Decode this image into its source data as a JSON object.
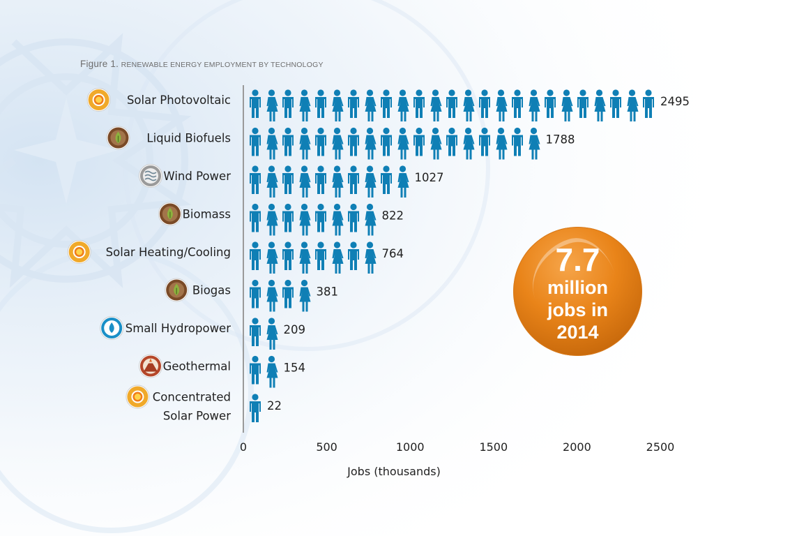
{
  "figure": {
    "caption_prefix": "Figure 1.",
    "caption_text": "Renewable energy employment by technology"
  },
  "badge": {
    "number": "7.7",
    "line1": "million",
    "line2": "jobs in",
    "line3": "2014",
    "color": "#e98419"
  },
  "colors": {
    "figure": "#0f7fb5",
    "solar_icon": "#f0a92a",
    "bio_icon": "#7a4a27",
    "wind_icon": "#9a9a9a",
    "hydro_icon": "#1a8fc7",
    "geo_icon": "#b5472a"
  },
  "chart_data": {
    "type": "bar",
    "orientation": "horizontal",
    "categories": [
      "Solar Photovoltaic",
      "Liquid Biofuels",
      "Wind Power",
      "Biomass",
      "Solar Heating/Cooling",
      "Biogas",
      "Small Hydropower",
      "Geothermal",
      "Concentrated Solar Power"
    ],
    "category_lines": [
      [
        "Solar Photovoltaic"
      ],
      [
        "Liquid Biofuels"
      ],
      [
        "Wind Power"
      ],
      [
        "Biomass"
      ],
      [
        "Solar Heating/Cooling"
      ],
      [
        "Biogas"
      ],
      [
        "Small Hydropower"
      ],
      [
        "Geothermal"
      ],
      [
        "Concentrated",
        "Solar Power"
      ]
    ],
    "icons": [
      "sun-icon",
      "biofuel-drop-icon",
      "wind-icon",
      "biomass-drop-icon",
      "sun-icon",
      "biogas-drop-icon",
      "water-drop-icon",
      "volcano-icon",
      "sun-icon"
    ],
    "values": [
      2495,
      1788,
      1027,
      822,
      764,
      381,
      209,
      154,
      22
    ],
    "value_labels": [
      "2495",
      "1788",
      "1027",
      "822",
      "764",
      "381",
      "209",
      "154",
      "22"
    ],
    "figures_per_row": [
      25,
      18,
      10,
      8,
      8,
      4,
      2,
      2,
      1
    ],
    "xlabel": "Jobs (thousands)",
    "ylabel": "",
    "xticks": [
      "0",
      "500",
      "1000",
      "1500",
      "2000",
      "2500"
    ],
    "xlim": [
      0,
      2500
    ],
    "grid": false,
    "legend": "none"
  }
}
